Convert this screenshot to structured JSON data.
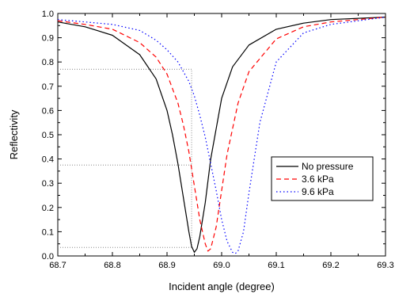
{
  "chart_data": {
    "type": "line",
    "title": "",
    "xlabel": "Incident angle (degree)",
    "ylabel": "Reflectivity",
    "xlim": [
      68.7,
      69.3
    ],
    "ylim": [
      0.0,
      1.0
    ],
    "xticks": [
      "68.7",
      "68.8",
      "68.9",
      "69.0",
      "69.1",
      "69.2",
      "69.3"
    ],
    "yticks": [
      "0.0",
      "0.1",
      "0.2",
      "0.3",
      "0.4",
      "0.5",
      "0.6",
      "0.7",
      "0.8",
      "0.9",
      "1.0"
    ],
    "grid": false,
    "legend_position": "right",
    "series": [
      {
        "name": "No pressure",
        "color": "#000000",
        "line_style": "solid",
        "x": [
          68.7,
          68.75,
          68.8,
          68.85,
          68.88,
          68.9,
          68.91,
          68.92,
          68.93,
          68.94,
          68.945,
          68.95,
          68.955,
          68.96,
          68.97,
          68.98,
          69.0,
          69.02,
          69.05,
          69.1,
          69.15,
          69.2,
          69.3
        ],
        "y": [
          0.965,
          0.945,
          0.91,
          0.83,
          0.73,
          0.6,
          0.5,
          0.38,
          0.24,
          0.1,
          0.04,
          0.015,
          0.03,
          0.08,
          0.22,
          0.4,
          0.65,
          0.78,
          0.87,
          0.935,
          0.96,
          0.975,
          0.985
        ]
      },
      {
        "name": "3.6 kPa",
        "color": "#ff0000",
        "line_style": "dashed",
        "x": [
          68.7,
          68.75,
          68.8,
          68.85,
          68.88,
          68.9,
          68.92,
          68.93,
          68.94,
          68.95,
          68.96,
          68.97,
          68.975,
          68.98,
          68.99,
          69.0,
          69.01,
          69.03,
          69.05,
          69.1,
          69.15,
          69.2,
          69.3
        ],
        "y": [
          0.97,
          0.955,
          0.935,
          0.88,
          0.82,
          0.75,
          0.63,
          0.54,
          0.43,
          0.29,
          0.15,
          0.05,
          0.02,
          0.03,
          0.12,
          0.27,
          0.42,
          0.63,
          0.76,
          0.895,
          0.945,
          0.965,
          0.985
        ]
      },
      {
        "name": "9.6 kPa",
        "color": "#0000ff",
        "line_style": "dotted",
        "x": [
          68.7,
          68.75,
          68.8,
          68.85,
          68.88,
          68.9,
          68.92,
          68.94,
          68.95,
          68.96,
          68.97,
          68.98,
          68.99,
          69.0,
          69.01,
          69.02,
          69.025,
          69.03,
          69.04,
          69.05,
          69.07,
          69.1,
          69.15,
          69.2,
          69.3
        ],
        "y": [
          0.975,
          0.965,
          0.955,
          0.93,
          0.89,
          0.85,
          0.8,
          0.72,
          0.66,
          0.58,
          0.49,
          0.38,
          0.27,
          0.15,
          0.06,
          0.015,
          0.01,
          0.02,
          0.1,
          0.26,
          0.55,
          0.8,
          0.92,
          0.955,
          0.985
        ]
      }
    ],
    "reference_lines": [
      {
        "type": "h",
        "y": 0.77,
        "x_from": 68.7,
        "x_to": 68.945
      },
      {
        "type": "h",
        "y": 0.375,
        "x_from": 68.7,
        "x_to": 68.945
      },
      {
        "type": "h",
        "y": 0.035,
        "x_from": 68.7,
        "x_to": 68.945
      },
      {
        "type": "v",
        "x": 68.945,
        "y_from": 0.035,
        "y_to": 0.77
      }
    ]
  }
}
